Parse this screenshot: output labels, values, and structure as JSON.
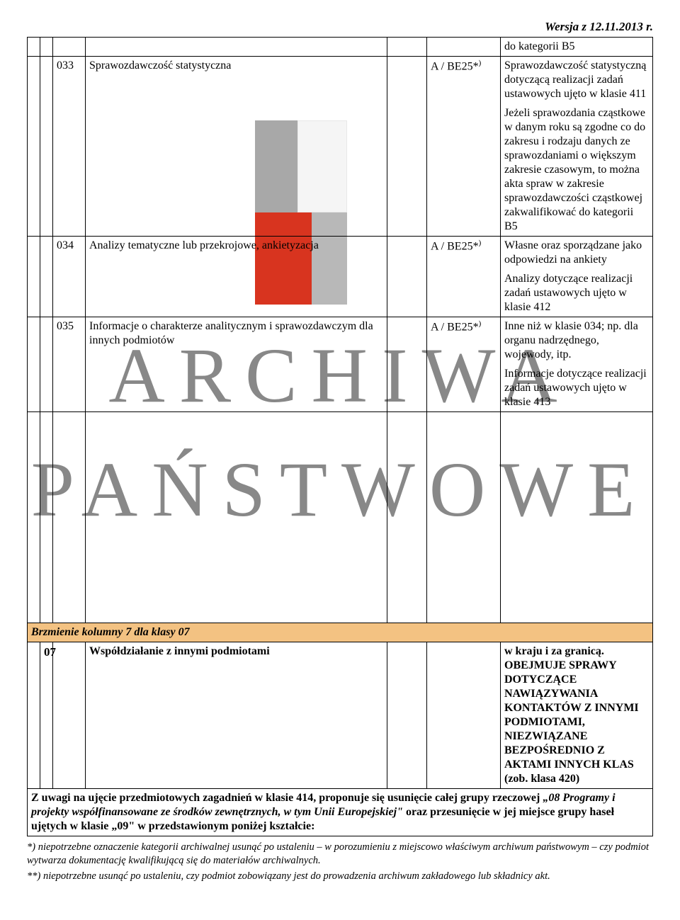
{
  "version_line": "Wersja z 12.11.2013 r.",
  "rows": [
    {
      "code": "",
      "title": "",
      "cat": "",
      "desc_html": "do kategorii B5"
    },
    {
      "code": "033",
      "title": "Sprawozdawczość statystyczna",
      "cat": "A / BE25*)",
      "desc_parts": [
        "Sprawozdawczość statystyczną dotyczącą realizacji zadań ustawowych ujęto w klasie 411",
        "Jeżeli sprawozdania cząstkowe w danym roku są zgodne co do zakresu i rodzaju danych ze sprawozdaniami o większym zakresie czasowym, to można akta spraw w zakresie sprawozdawczości cząstkowej zakwalifikować do kategorii B5"
      ]
    },
    {
      "code": "034",
      "title": "Analizy tematyczne lub przekrojowe, ankietyzacja",
      "cat": "A / BE25*)",
      "desc_parts": [
        "Własne oraz sporządzane jako odpowiedzi na ankiety",
        "Analizy dotyczące realizacji zadań ustawowych ujęto w klasie 412"
      ]
    },
    {
      "code": "035",
      "title": "Informacje o charakterze analitycznym i sprawozdawczym dla innych podmiotów",
      "cat": "A / BE25*)",
      "desc_parts": [
        "Inne niż w klasie 034; np. dla organu nadrzędnego, wojewody, itp.",
        "Informacje dotyczące realizacji zadań ustawowych ujęto w klasie 413"
      ]
    }
  ],
  "section_heading": "Brzmienie kolumny 7 dla klasy 07",
  "row07": {
    "code": "07",
    "title": "Współdziałanie z innymi podmiotami",
    "desc_parts": [
      "w kraju i za granicą.",
      "OBEJMUJE SPRAWY DOTYCZĄCE NAWIĄZYWANIA KONTAKTÓW Z INNYMI PODMIOTAMI, NIEZWIĄZANE BEZPOŚREDNIO Z AKTAMI INNYCH KLAS (zob. klasa 420)"
    ]
  },
  "note_paragraph": "Z uwagi na ujęcie przedmiotowych zagadnień w klasie 414, proponuje się usunięcie całej grupy rzeczowej „08 Programy i projekty współfinansowane ze środków zewnętrznych, w tym Unii Europejskiej\" oraz przesunięcie w jej miejsce grupy haseł ujętych w klasie „09\" w przedstawionym poniżej kształcie:",
  "footnotes": [
    "*) niepotrzebne oznaczenie kategorii archiwalnej usunąć po ustaleniu – w porozumieniu z miejscowo właściwym archiwum państwowym – czy podmiot wytwarza dokumentację kwalifikującą się do materiałów archiwalnych.",
    "**) niepotrzebne usunąć po ustaleniu, czy podmiot zobowiązany jest do prowadzenia archiwum zakładowego lub składnicy akt."
  ],
  "colors": {
    "section_bg": "#f3c282",
    "wm_text": "#888888",
    "wm_red": "#d8341f",
    "wm_grey": "#a8a8a8"
  },
  "watermark_lines": [
    "ARCHIWA",
    "PAŃSTWOWE"
  ]
}
